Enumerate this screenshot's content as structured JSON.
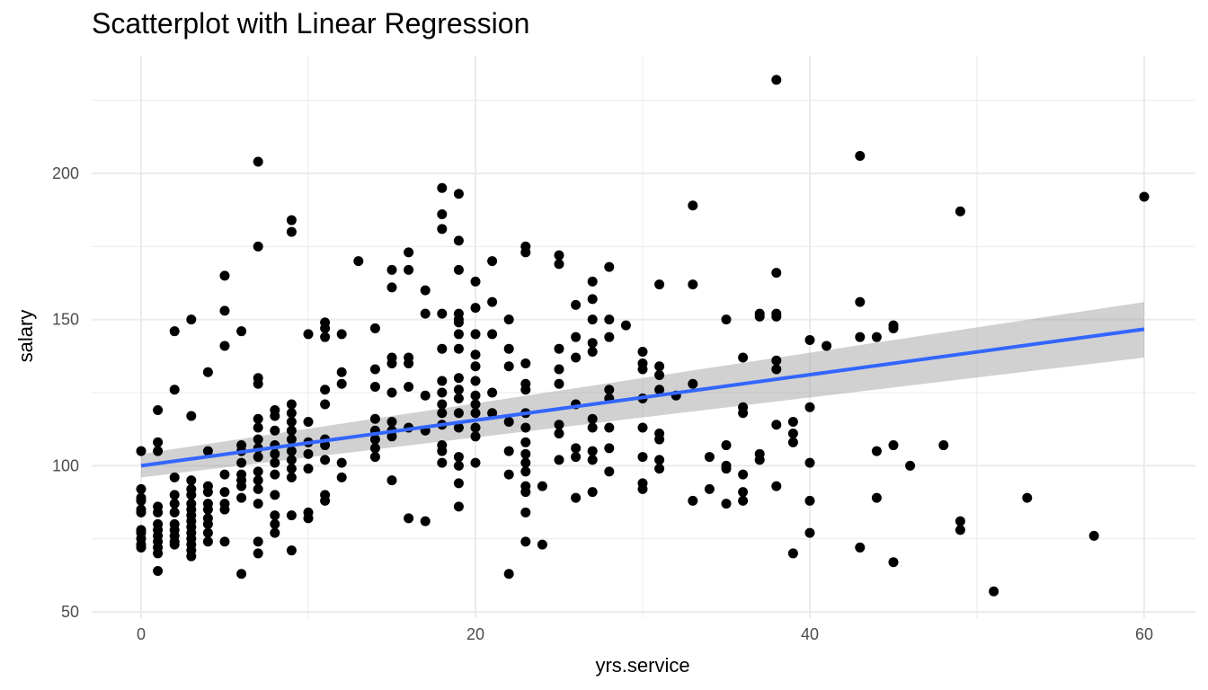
{
  "chart_data": {
    "type": "scatter",
    "title": "Scatterplot with Linear Regression",
    "xlabel": "yrs.service",
    "ylabel": "salary",
    "xlim": [
      -3,
      63
    ],
    "ylim": [
      50,
      230
    ],
    "x_ticks": [
      0,
      20,
      40,
      60
    ],
    "y_ticks": [
      50,
      100,
      150,
      200
    ],
    "grid": true,
    "point_color": "#000000",
    "line_color": "#3366ff",
    "band_color": "#999999",
    "regression": {
      "x": [
        0,
        60
      ],
      "y": [
        100,
        146.7
      ],
      "ci_lower": [
        96.0,
        137.0
      ],
      "ci_upper": [
        104.0,
        156.0
      ]
    },
    "points": [
      [
        0,
        105
      ],
      [
        0,
        92
      ],
      [
        0,
        89
      ],
      [
        0,
        88
      ],
      [
        0,
        85
      ],
      [
        0,
        84
      ],
      [
        0,
        78
      ],
      [
        0,
        77
      ],
      [
        0,
        75
      ],
      [
        0,
        73
      ],
      [
        0,
        72
      ],
      [
        1,
        119
      ],
      [
        1,
        108
      ],
      [
        1,
        105
      ],
      [
        1,
        86
      ],
      [
        1,
        84
      ],
      [
        1,
        80
      ],
      [
        1,
        78
      ],
      [
        1,
        76
      ],
      [
        1,
        74
      ],
      [
        1,
        72
      ],
      [
        1,
        70
      ],
      [
        1,
        64
      ],
      [
        2,
        146
      ],
      [
        2,
        126
      ],
      [
        2,
        96
      ],
      [
        2,
        90
      ],
      [
        2,
        87
      ],
      [
        2,
        84
      ],
      [
        2,
        80
      ],
      [
        2,
        78
      ],
      [
        2,
        76
      ],
      [
        2,
        74
      ],
      [
        2,
        73
      ],
      [
        3,
        150
      ],
      [
        3,
        117
      ],
      [
        3,
        95
      ],
      [
        3,
        92
      ],
      [
        3,
        90
      ],
      [
        3,
        87
      ],
      [
        3,
        85
      ],
      [
        3,
        83
      ],
      [
        3,
        81
      ],
      [
        3,
        79
      ],
      [
        3,
        77
      ],
      [
        3,
        75
      ],
      [
        3,
        73
      ],
      [
        3,
        71
      ],
      [
        3,
        69
      ],
      [
        4,
        132
      ],
      [
        4,
        105
      ],
      [
        4,
        93
      ],
      [
        4,
        91
      ],
      [
        4,
        87
      ],
      [
        4,
        85
      ],
      [
        4,
        82
      ],
      [
        4,
        80
      ],
      [
        4,
        77
      ],
      [
        4,
        74
      ],
      [
        5,
        165
      ],
      [
        5,
        153
      ],
      [
        5,
        141
      ],
      [
        5,
        97
      ],
      [
        5,
        91
      ],
      [
        5,
        87
      ],
      [
        5,
        85
      ],
      [
        5,
        74
      ],
      [
        6,
        146
      ],
      [
        6,
        107
      ],
      [
        6,
        105
      ],
      [
        6,
        101
      ],
      [
        6,
        97
      ],
      [
        6,
        95
      ],
      [
        6,
        93
      ],
      [
        6,
        89
      ],
      [
        6,
        63
      ],
      [
        7,
        204
      ],
      [
        7,
        175
      ],
      [
        7,
        130
      ],
      [
        7,
        128
      ],
      [
        7,
        116
      ],
      [
        7,
        113
      ],
      [
        7,
        109
      ],
      [
        7,
        106
      ],
      [
        7,
        103
      ],
      [
        7,
        98
      ],
      [
        7,
        95
      ],
      [
        7,
        92
      ],
      [
        7,
        87
      ],
      [
        7,
        74
      ],
      [
        7,
        70
      ],
      [
        8,
        119
      ],
      [
        8,
        117
      ],
      [
        8,
        112
      ],
      [
        8,
        107
      ],
      [
        8,
        104
      ],
      [
        8,
        101
      ],
      [
        8,
        97
      ],
      [
        8,
        90
      ],
      [
        8,
        83
      ],
      [
        8,
        80
      ],
      [
        8,
        77
      ],
      [
        9,
        184
      ],
      [
        9,
        180
      ],
      [
        9,
        121
      ],
      [
        9,
        118
      ],
      [
        9,
        115
      ],
      [
        9,
        112
      ],
      [
        9,
        109
      ],
      [
        9,
        105
      ],
      [
        9,
        102
      ],
      [
        9,
        99
      ],
      [
        9,
        96
      ],
      [
        9,
        83
      ],
      [
        9,
        71
      ],
      [
        10,
        145
      ],
      [
        10,
        115
      ],
      [
        10,
        108
      ],
      [
        10,
        104
      ],
      [
        10,
        99
      ],
      [
        10,
        84
      ],
      [
        10,
        82
      ],
      [
        11,
        149
      ],
      [
        11,
        147
      ],
      [
        11,
        144
      ],
      [
        11,
        126
      ],
      [
        11,
        121
      ],
      [
        11,
        109
      ],
      [
        11,
        107
      ],
      [
        11,
        102
      ],
      [
        11,
        90
      ],
      [
        11,
        88
      ],
      [
        12,
        145
      ],
      [
        12,
        132
      ],
      [
        12,
        128
      ],
      [
        12,
        101
      ],
      [
        12,
        96
      ],
      [
        13,
        170
      ],
      [
        14,
        147
      ],
      [
        14,
        133
      ],
      [
        14,
        127
      ],
      [
        14,
        116
      ],
      [
        14,
        112
      ],
      [
        14,
        109
      ],
      [
        14,
        106
      ],
      [
        14,
        103
      ],
      [
        15,
        167
      ],
      [
        15,
        161
      ],
      [
        15,
        137
      ],
      [
        15,
        135
      ],
      [
        15,
        125
      ],
      [
        15,
        115
      ],
      [
        15,
        112
      ],
      [
        15,
        110
      ],
      [
        15,
        95
      ],
      [
        16,
        173
      ],
      [
        16,
        167
      ],
      [
        16,
        137
      ],
      [
        16,
        135
      ],
      [
        16,
        127
      ],
      [
        16,
        113
      ],
      [
        16,
        82
      ],
      [
        17,
        160
      ],
      [
        17,
        152
      ],
      [
        17,
        124
      ],
      [
        17,
        112
      ],
      [
        17,
        81
      ],
      [
        18,
        195
      ],
      [
        18,
        186
      ],
      [
        18,
        181
      ],
      [
        18,
        152
      ],
      [
        18,
        140
      ],
      [
        18,
        129
      ],
      [
        18,
        125
      ],
      [
        18,
        121
      ],
      [
        18,
        118
      ],
      [
        18,
        114
      ],
      [
        18,
        107
      ],
      [
        18,
        105
      ],
      [
        18,
        101
      ],
      [
        19,
        193
      ],
      [
        19,
        177
      ],
      [
        19,
        167
      ],
      [
        19,
        152
      ],
      [
        19,
        150
      ],
      [
        19,
        149
      ],
      [
        19,
        145
      ],
      [
        19,
        140
      ],
      [
        19,
        130
      ],
      [
        19,
        126
      ],
      [
        19,
        123
      ],
      [
        19,
        118
      ],
      [
        19,
        113
      ],
      [
        19,
        103
      ],
      [
        19,
        100
      ],
      [
        19,
        94
      ],
      [
        19,
        86
      ],
      [
        20,
        163
      ],
      [
        20,
        154
      ],
      [
        20,
        145
      ],
      [
        20,
        138
      ],
      [
        20,
        134
      ],
      [
        20,
        129
      ],
      [
        20,
        124
      ],
      [
        20,
        121
      ],
      [
        20,
        118
      ],
      [
        20,
        113
      ],
      [
        20,
        110
      ],
      [
        20,
        101
      ],
      [
        21,
        170
      ],
      [
        21,
        156
      ],
      [
        21,
        145
      ],
      [
        21,
        125
      ],
      [
        21,
        118
      ],
      [
        22,
        150
      ],
      [
        22,
        140
      ],
      [
        22,
        134
      ],
      [
        22,
        115
      ],
      [
        22,
        105
      ],
      [
        22,
        97
      ],
      [
        22,
        63
      ],
      [
        23,
        175
      ],
      [
        23,
        173
      ],
      [
        23,
        135
      ],
      [
        23,
        128
      ],
      [
        23,
        126
      ],
      [
        23,
        118
      ],
      [
        23,
        113
      ],
      [
        23,
        108
      ],
      [
        23,
        104
      ],
      [
        23,
        101
      ],
      [
        23,
        98
      ],
      [
        23,
        93
      ],
      [
        23,
        91
      ],
      [
        23,
        84
      ],
      [
        23,
        74
      ],
      [
        24,
        93
      ],
      [
        24,
        73
      ],
      [
        25,
        172
      ],
      [
        25,
        169
      ],
      [
        25,
        140
      ],
      [
        25,
        133
      ],
      [
        25,
        128
      ],
      [
        25,
        114
      ],
      [
        25,
        111
      ],
      [
        25,
        102
      ],
      [
        26,
        155
      ],
      [
        26,
        144
      ],
      [
        26,
        137
      ],
      [
        26,
        121
      ],
      [
        26,
        106
      ],
      [
        26,
        103
      ],
      [
        26,
        89
      ],
      [
        27,
        163
      ],
      [
        27,
        157
      ],
      [
        27,
        150
      ],
      [
        27,
        142
      ],
      [
        27,
        139
      ],
      [
        27,
        116
      ],
      [
        27,
        113
      ],
      [
        27,
        105
      ],
      [
        27,
        102
      ],
      [
        27,
        91
      ],
      [
        28,
        168
      ],
      [
        28,
        150
      ],
      [
        28,
        144
      ],
      [
        28,
        126
      ],
      [
        28,
        123
      ],
      [
        28,
        113
      ],
      [
        28,
        106
      ],
      [
        28,
        98
      ],
      [
        29,
        148
      ],
      [
        30,
        139
      ],
      [
        30,
        135
      ],
      [
        30,
        133
      ],
      [
        30,
        123
      ],
      [
        30,
        113
      ],
      [
        30,
        103
      ],
      [
        30,
        94
      ],
      [
        30,
        92
      ],
      [
        31,
        162
      ],
      [
        31,
        134
      ],
      [
        31,
        131
      ],
      [
        31,
        126
      ],
      [
        31,
        111
      ],
      [
        31,
        109
      ],
      [
        31,
        102
      ],
      [
        31,
        99
      ],
      [
        32,
        124
      ],
      [
        33,
        189
      ],
      [
        33,
        162
      ],
      [
        33,
        128
      ],
      [
        33,
        88
      ],
      [
        34,
        103
      ],
      [
        34,
        92
      ],
      [
        35,
        150
      ],
      [
        35,
        107
      ],
      [
        35,
        100
      ],
      [
        35,
        99
      ],
      [
        35,
        87
      ],
      [
        36,
        137
      ],
      [
        36,
        120
      ],
      [
        36,
        118
      ],
      [
        36,
        97
      ],
      [
        36,
        91
      ],
      [
        36,
        88
      ],
      [
        37,
        152
      ],
      [
        37,
        151
      ],
      [
        37,
        104
      ],
      [
        37,
        102
      ],
      [
        38,
        232
      ],
      [
        38,
        166
      ],
      [
        38,
        152
      ],
      [
        38,
        151
      ],
      [
        38,
        136
      ],
      [
        38,
        133
      ],
      [
        38,
        114
      ],
      [
        38,
        93
      ],
      [
        39,
        115
      ],
      [
        39,
        111
      ],
      [
        39,
        108
      ],
      [
        39,
        70
      ],
      [
        40,
        143
      ],
      [
        40,
        120
      ],
      [
        40,
        101
      ],
      [
        40,
        88
      ],
      [
        40,
        77
      ],
      [
        41,
        141
      ],
      [
        43,
        206
      ],
      [
        43,
        156
      ],
      [
        43,
        144
      ],
      [
        43,
        72
      ],
      [
        44,
        144
      ],
      [
        44,
        105
      ],
      [
        44,
        89
      ],
      [
        45,
        148
      ],
      [
        45,
        147
      ],
      [
        45,
        107
      ],
      [
        45,
        67
      ],
      [
        46,
        100
      ],
      [
        48,
        107
      ],
      [
        49,
        187
      ],
      [
        49,
        81
      ],
      [
        49,
        78
      ],
      [
        51,
        57
      ],
      [
        53,
        89
      ],
      [
        57,
        76
      ],
      [
        60,
        192
      ]
    ]
  }
}
